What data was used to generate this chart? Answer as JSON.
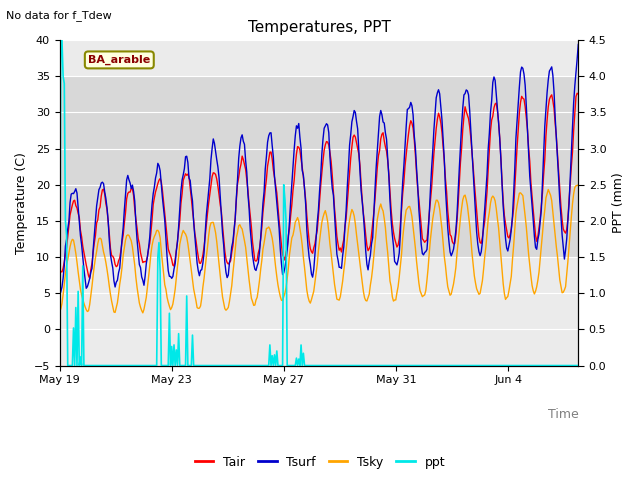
{
  "title": "Temperatures, PPT",
  "subtitle": "No data for f_Tdew",
  "annotation": "BA_arable",
  "xlabel": "Time",
  "ylabel_left": "Temperature (C)",
  "ylabel_right": "PPT (mm)",
  "ylim_left": [
    -5,
    40
  ],
  "ylim_right": [
    0.0,
    4.5
  ],
  "yticks_left": [
    -5,
    0,
    5,
    10,
    15,
    20,
    25,
    30,
    35,
    40
  ],
  "yticks_right": [
    0.0,
    0.5,
    1.0,
    1.5,
    2.0,
    2.5,
    3.0,
    3.5,
    4.0,
    4.5
  ],
  "xtick_labels": [
    "May 19",
    "May 23",
    "May 27",
    "May 31",
    "Jun 4"
  ],
  "xtick_positions": [
    0,
    4,
    8,
    12,
    16
  ],
  "xlim": [
    0,
    18.5
  ],
  "n_days": 18.5,
  "color_tair": "#ff0000",
  "color_tsurf": "#0000cc",
  "color_tsky": "#ffa500",
  "color_ppt": "#00e8e8",
  "bg_outer": "#ebebeb",
  "bg_inner": "#d8d8d8",
  "inner_ymin": 10,
  "inner_ymax": 35,
  "legend_labels": [
    "Tair",
    "Tsurf",
    "Tsky",
    "ppt"
  ],
  "legend_colors": [
    "#ff0000",
    "#0000cc",
    "#ffa500",
    "#00e8e8"
  ]
}
